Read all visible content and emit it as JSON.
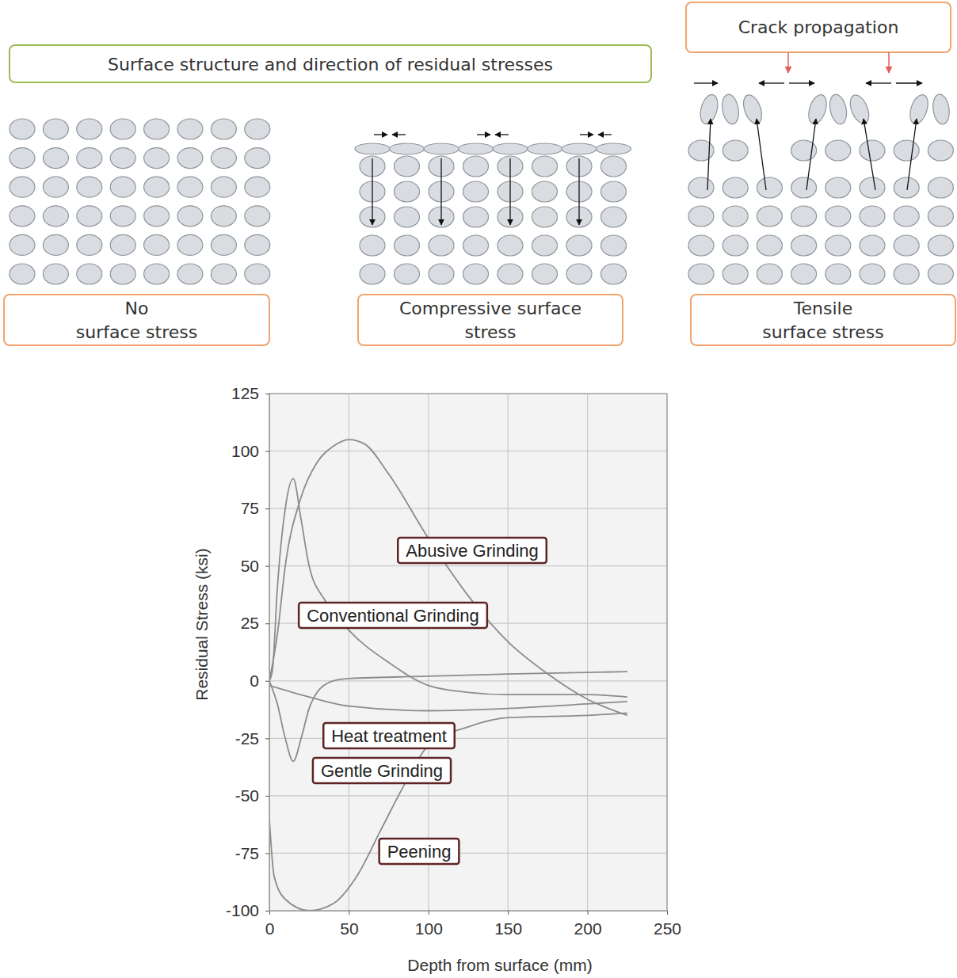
{
  "diagram": {
    "title": "Surface structure and direction of residual stresses",
    "crack_label": "Crack propagation",
    "panels": [
      {
        "label": [
          "No",
          "surface stress"
        ]
      },
      {
        "label": [
          "Compressive surface",
          "stress"
        ]
      },
      {
        "label": [
          "Tensile",
          "surface stress"
        ]
      }
    ]
  },
  "chart_data": {
    "type": "line",
    "x_label": "Depth from surface (mm)",
    "y_label": "Residual Stress (ksi)",
    "xlim": [
      0,
      250
    ],
    "ylim": [
      -100,
      125
    ],
    "xticks": [
      0,
      50,
      100,
      150,
      200,
      250
    ],
    "yticks": [
      -100,
      -75,
      -50,
      -25,
      0,
      25,
      50,
      75,
      100,
      125
    ],
    "grid": true,
    "series": [
      {
        "name": "Abusive Grinding",
        "color": "#8c8c8c",
        "x": [
          0,
          5,
          10,
          20,
          30,
          40,
          50,
          60,
          75,
          100,
          125,
          150,
          175,
          200,
          225
        ],
        "values": [
          0,
          20,
          50,
          80,
          95,
          102,
          105,
          103,
          90,
          62,
          37,
          17,
          3,
          -8,
          -15
        ]
      },
      {
        "name": "Conventional Grinding",
        "color": "#8c8c8c",
        "x": [
          0,
          2,
          5,
          10,
          15,
          20,
          25,
          35,
          50,
          75,
          100,
          125,
          150,
          200,
          225
        ],
        "values": [
          0,
          5,
          40,
          75,
          88,
          70,
          50,
          35,
          22,
          8,
          -2,
          -5,
          -6,
          -6,
          -7
        ]
      },
      {
        "name": "Heat treatment",
        "color": "#8c8c8c",
        "x": [
          0,
          25,
          50,
          100,
          150,
          200,
          225
        ],
        "values": [
          -2,
          -7,
          -11,
          -13,
          -12,
          -10,
          -9
        ]
      },
      {
        "name": "Gentle Grinding",
        "color": "#8c8c8c",
        "x": [
          0,
          5,
          10,
          15,
          20,
          25,
          30,
          40,
          50,
          100,
          150,
          225
        ],
        "values": [
          0,
          -10,
          -25,
          -35,
          -25,
          -12,
          -5,
          0,
          1,
          2,
          3,
          4
        ]
      },
      {
        "name": "Peening",
        "color": "#8c8c8c",
        "x": [
          0,
          3,
          10,
          25,
          40,
          55,
          70,
          85,
          100,
          125,
          150,
          200,
          225
        ],
        "values": [
          -60,
          -85,
          -95,
          -100,
          -97,
          -85,
          -65,
          -45,
          -28,
          -20,
          -16,
          -15,
          -14
        ]
      }
    ]
  }
}
